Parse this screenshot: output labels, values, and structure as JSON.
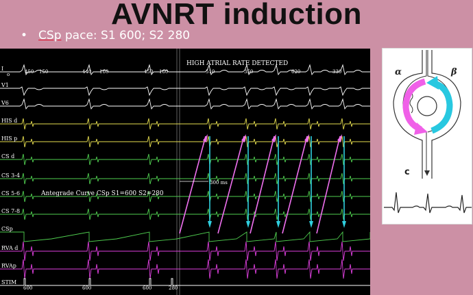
{
  "slide": {
    "title": "AVNRT induction",
    "bullet": "CSp pace: S1 600; S2 280",
    "bullet_prefix": "CSp",
    "bullet_rest": " pace: S1 600; S2 280"
  },
  "ecg": {
    "banner": "HIGH ATRIAL RATE DETECTED",
    "curve_label": "Antegrade Curve CSp S1=600 S2=280",
    "interval_label": "300 ms",
    "channels": [
      {
        "label": "I",
        "sub": "o",
        "color": "#ffffff"
      },
      {
        "label": "V1",
        "color": "#ffffff"
      },
      {
        "label": "V6",
        "color": "#ffffff"
      },
      {
        "label": "HIS d",
        "color": "#e8e050"
      },
      {
        "label": "HIS p",
        "color": "#e8e050"
      },
      {
        "label": "CS d",
        "color": "#50d050"
      },
      {
        "label": "CS 3-4",
        "color": "#50d050"
      },
      {
        "label": "CS 5-6",
        "color": "#50d050"
      },
      {
        "label": "CS 7-8",
        "color": "#50d050"
      },
      {
        "label": "CSp",
        "color": "#50d050"
      },
      {
        "label": "RVA d",
        "color": "#e040e0"
      },
      {
        "label": "RVAp",
        "color": "#e040e0"
      },
      {
        "label": "STIM",
        "color": "#ffffff"
      }
    ],
    "top_intervals": [
      "450",
      "150",
      "440",
      "160",
      "450",
      "160",
      "510",
      "350",
      "620",
      "330"
    ],
    "stim_intervals": [
      "600",
      "600",
      "600",
      "280"
    ],
    "colors": {
      "pink_arrow": "#f070f0",
      "cyan_arrow": "#30d0e0"
    }
  },
  "diagram": {
    "alpha": "α",
    "beta": "β",
    "c": "c"
  }
}
